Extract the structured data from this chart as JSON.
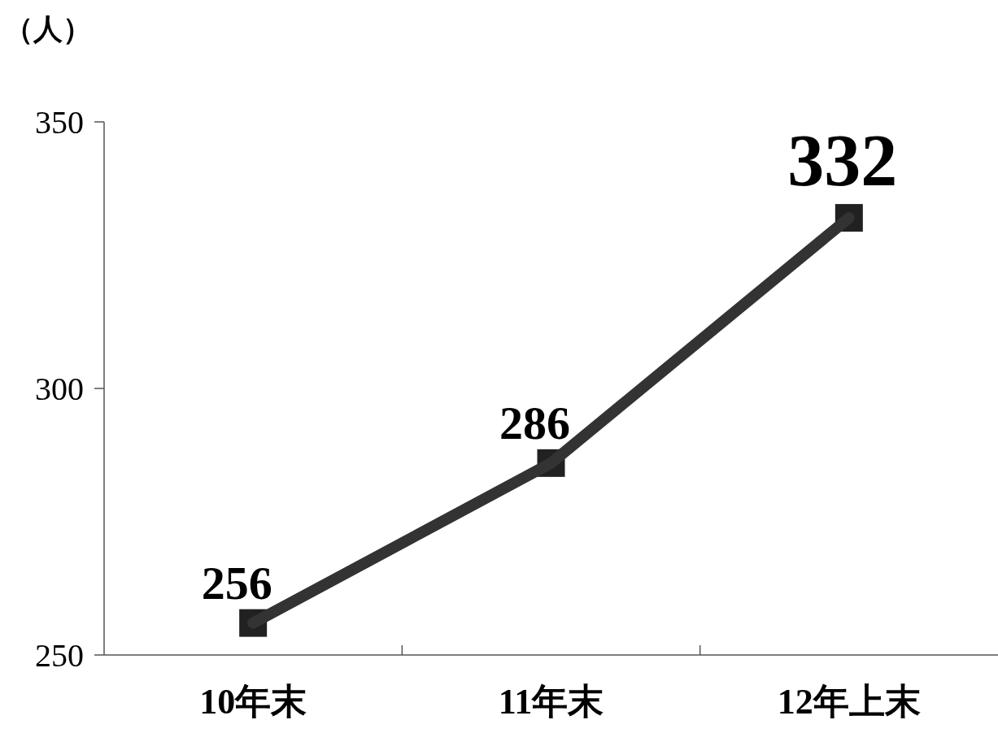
{
  "chart_data": {
    "type": "line",
    "ylabel": "（人）",
    "categories": [
      "10年末",
      "11年末",
      "12年上末"
    ],
    "series": [
      {
        "color": "#333333",
        "values": [
          256,
          286,
          332
        ]
      }
    ],
    "ylim": [
      250,
      350
    ],
    "yticks": [
      250,
      300,
      350
    ],
    "marker": "square",
    "line_style": "solid",
    "grid": false,
    "data_labels": true
  }
}
